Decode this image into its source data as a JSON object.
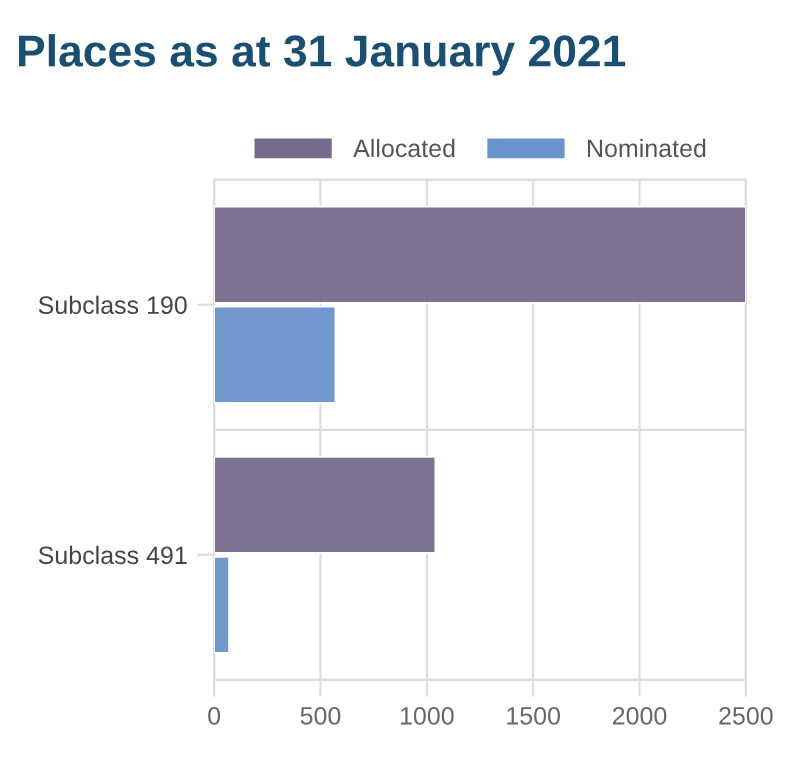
{
  "chart_data": {
    "type": "bar",
    "orientation": "horizontal",
    "title": "Places as at 31 January 2021",
    "categories": [
      "Subclass 190",
      "Subclass 491"
    ],
    "series": [
      {
        "name": "Allocated",
        "color": "#776b8c",
        "values": [
          2500,
          1040
        ]
      },
      {
        "name": "Nominated",
        "color": "#6b93cc",
        "values": [
          570,
          70
        ]
      }
    ],
    "xlim": [
      0,
      2500
    ],
    "xticks": [
      0,
      500,
      1000,
      1500,
      2000,
      2500
    ],
    "grid": true,
    "legend": "top"
  }
}
